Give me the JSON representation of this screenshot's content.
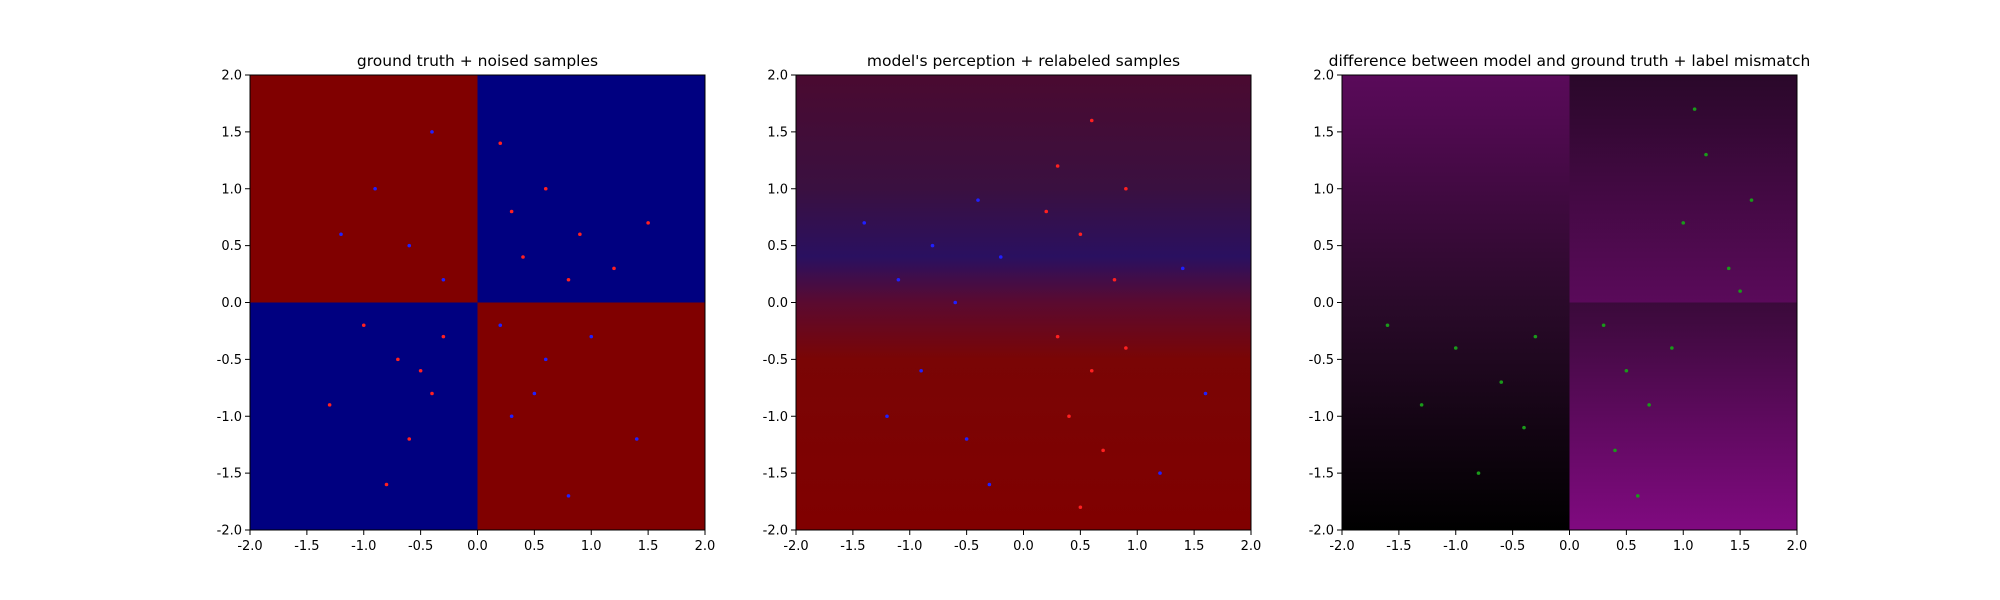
{
  "chart_data": [
    {
      "type": "scatter",
      "title": "ground truth + noised samples",
      "xlim": [
        -2.0,
        2.0
      ],
      "ylim": [
        -2.0,
        2.0
      ],
      "x_ticks": [
        "-2.0",
        "-1.5",
        "-1.0",
        "-0.5",
        "0.0",
        "0.5",
        "1.0",
        "1.5",
        "2.0"
      ],
      "y_ticks": [
        "2.0",
        "1.5",
        "1.0",
        "0.5",
        "0.0",
        "-0.5",
        "-1.0",
        "-1.5",
        "-2.0"
      ],
      "background": {
        "kind": "quadrants",
        "colors": {
          "top_left": "#800000",
          "top_right": "#000080",
          "bottom_left": "#000080",
          "bottom_right": "#800000"
        }
      },
      "series": [
        {
          "color": "#ff2020",
          "points": [
            [
              0.3,
              0.8
            ],
            [
              0.6,
              1.0
            ],
            [
              0.9,
              0.6
            ],
            [
              1.2,
              0.3
            ],
            [
              0.4,
              0.4
            ],
            [
              0.8,
              0.2
            ],
            [
              1.5,
              0.7
            ],
            [
              0.2,
              1.4
            ],
            [
              -0.7,
              -0.5
            ],
            [
              -0.4,
              -0.8
            ],
            [
              -1.0,
              -0.2
            ],
            [
              -0.6,
              -1.2
            ],
            [
              -0.3,
              -0.3
            ],
            [
              -1.3,
              -0.9
            ],
            [
              -0.8,
              -1.6
            ],
            [
              -0.5,
              -0.6
            ]
          ]
        },
        {
          "color": "#2020ff",
          "points": [
            [
              -0.6,
              0.5
            ],
            [
              -0.9,
              1.0
            ],
            [
              -0.3,
              0.2
            ],
            [
              -1.2,
              0.6
            ],
            [
              -0.4,
              1.5
            ],
            [
              0.6,
              -0.5
            ],
            [
              0.3,
              -1.0
            ],
            [
              1.0,
              -0.3
            ],
            [
              1.4,
              -1.2
            ],
            [
              0.8,
              -1.7
            ],
            [
              0.2,
              -0.2
            ],
            [
              0.5,
              -0.8
            ]
          ]
        }
      ]
    },
    {
      "type": "scatter",
      "title": "model's perception + relabeled samples",
      "xlim": [
        -2.0,
        2.0
      ],
      "ylim": [
        -2.0,
        2.0
      ],
      "x_ticks": [
        "-2.0",
        "-1.5",
        "-1.0",
        "-0.5",
        "0.0",
        "0.5",
        "1.0",
        "1.5",
        "2.0"
      ],
      "y_ticks": [
        "2.0",
        "1.5",
        "1.0",
        "0.5",
        "0.0",
        "-0.5",
        "-1.0",
        "-1.5",
        "-2.0"
      ],
      "background": {
        "kind": "gradient",
        "stops": [
          {
            "y": 2.0,
            "color": "#4a0a30"
          },
          {
            "y": 1.0,
            "color": "#3a1040"
          },
          {
            "y": 0.4,
            "color": "#2a1060"
          },
          {
            "y": 0.0,
            "color": "#5a0a30"
          },
          {
            "y": -0.5,
            "color": "#7a0505"
          },
          {
            "y": -2.0,
            "color": "#800000"
          }
        ]
      },
      "series": [
        {
          "color": "#ff2020",
          "points": [
            [
              0.3,
              1.2
            ],
            [
              0.6,
              1.6
            ],
            [
              0.5,
              0.6
            ],
            [
              0.8,
              0.2
            ],
            [
              0.3,
              -0.3
            ],
            [
              0.6,
              -0.6
            ],
            [
              0.9,
              -0.4
            ],
            [
              0.4,
              -1.0
            ],
            [
              0.7,
              -1.3
            ],
            [
              0.5,
              -1.8
            ],
            [
              0.2,
              0.8
            ],
            [
              0.9,
              1.0
            ]
          ]
        },
        {
          "color": "#2020ff",
          "points": [
            [
              -0.8,
              0.5
            ],
            [
              -0.4,
              0.9
            ],
            [
              -1.1,
              0.2
            ],
            [
              -0.6,
              0.0
            ],
            [
              -1.4,
              0.7
            ],
            [
              -0.2,
              0.4
            ],
            [
              -0.9,
              -0.6
            ],
            [
              -0.5,
              -1.2
            ],
            [
              -1.2,
              -1.0
            ],
            [
              -0.3,
              -1.6
            ],
            [
              1.4,
              0.3
            ],
            [
              1.6,
              -0.8
            ],
            [
              1.2,
              -1.5
            ]
          ]
        }
      ]
    },
    {
      "type": "scatter",
      "title": "difference between model and ground truth + label mismatch",
      "xlim": [
        -2.0,
        2.0
      ],
      "ylim": [
        -2.0,
        2.0
      ],
      "x_ticks": [
        "-2.0",
        "-1.5",
        "-1.0",
        "-0.5",
        "0.0",
        "0.5",
        "1.0",
        "1.5",
        "2.0"
      ],
      "y_ticks": [
        "2.0",
        "1.5",
        "1.0",
        "0.5",
        "0.0",
        "-0.5",
        "-1.0",
        "-1.5",
        "-2.0"
      ],
      "background": {
        "kind": "quadrant_gradients",
        "top_left": [
          "#5a0a5a",
          "#2a0a2a"
        ],
        "top_right": [
          "#2a082a",
          "#5a0a5a"
        ],
        "bottom_left": [
          "#2a0a2a",
          "#000000"
        ],
        "bottom_right": [
          "#3a0a3a",
          "#800a80"
        ]
      },
      "series": [
        {
          "color": "#1a9a1a",
          "points": [
            [
              1.2,
              1.3
            ],
            [
              1.0,
              0.7
            ],
            [
              1.4,
              0.3
            ],
            [
              1.6,
              0.9
            ],
            [
              1.1,
              1.7
            ],
            [
              1.5,
              0.1
            ],
            [
              -0.3,
              -0.3
            ],
            [
              -0.6,
              -0.7
            ],
            [
              -1.0,
              -0.4
            ],
            [
              -0.4,
              -1.1
            ],
            [
              -1.3,
              -0.9
            ],
            [
              -0.8,
              -1.5
            ],
            [
              -1.6,
              -0.2
            ],
            [
              0.3,
              -0.2
            ],
            [
              0.5,
              -0.6
            ],
            [
              0.7,
              -0.9
            ],
            [
              0.4,
              -1.3
            ],
            [
              0.9,
              -0.4
            ],
            [
              0.6,
              -1.7
            ]
          ]
        }
      ]
    }
  ]
}
